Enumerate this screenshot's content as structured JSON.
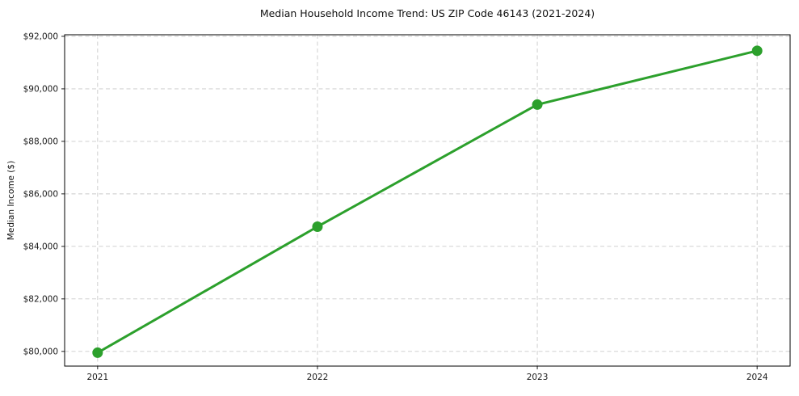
{
  "chart_data": {
    "type": "line",
    "title": "Median Household Income Trend: US ZIP Code 46143 (2021-2024)",
    "xlabel": "",
    "ylabel": "Median Income ($)",
    "categories": [
      "2021",
      "2022",
      "2023",
      "2024"
    ],
    "x": [
      2021,
      2022,
      2023,
      2024
    ],
    "values": [
      79950,
      84750,
      89400,
      91450
    ],
    "yticks": [
      80000,
      82000,
      84000,
      86000,
      88000,
      90000,
      92000
    ],
    "ytick_labels": [
      "$80,000",
      "$82,000",
      "$84,000",
      "$86,000",
      "$88,000",
      "$90,000",
      "$92,000"
    ],
    "xlim": [
      2020.85,
      2024.15
    ],
    "ylim": [
      79440,
      92060
    ],
    "grid": true,
    "grid_style": "dashed",
    "legend": null,
    "line_color": "#2ca02c",
    "marker": "circle",
    "marker_size": 13,
    "line_width": 3
  },
  "colors": {
    "background": "#ffffff",
    "grid": "#c9c9c9",
    "spine": "#000000",
    "text": "#1a1a1a",
    "series": "#2ca02c"
  }
}
